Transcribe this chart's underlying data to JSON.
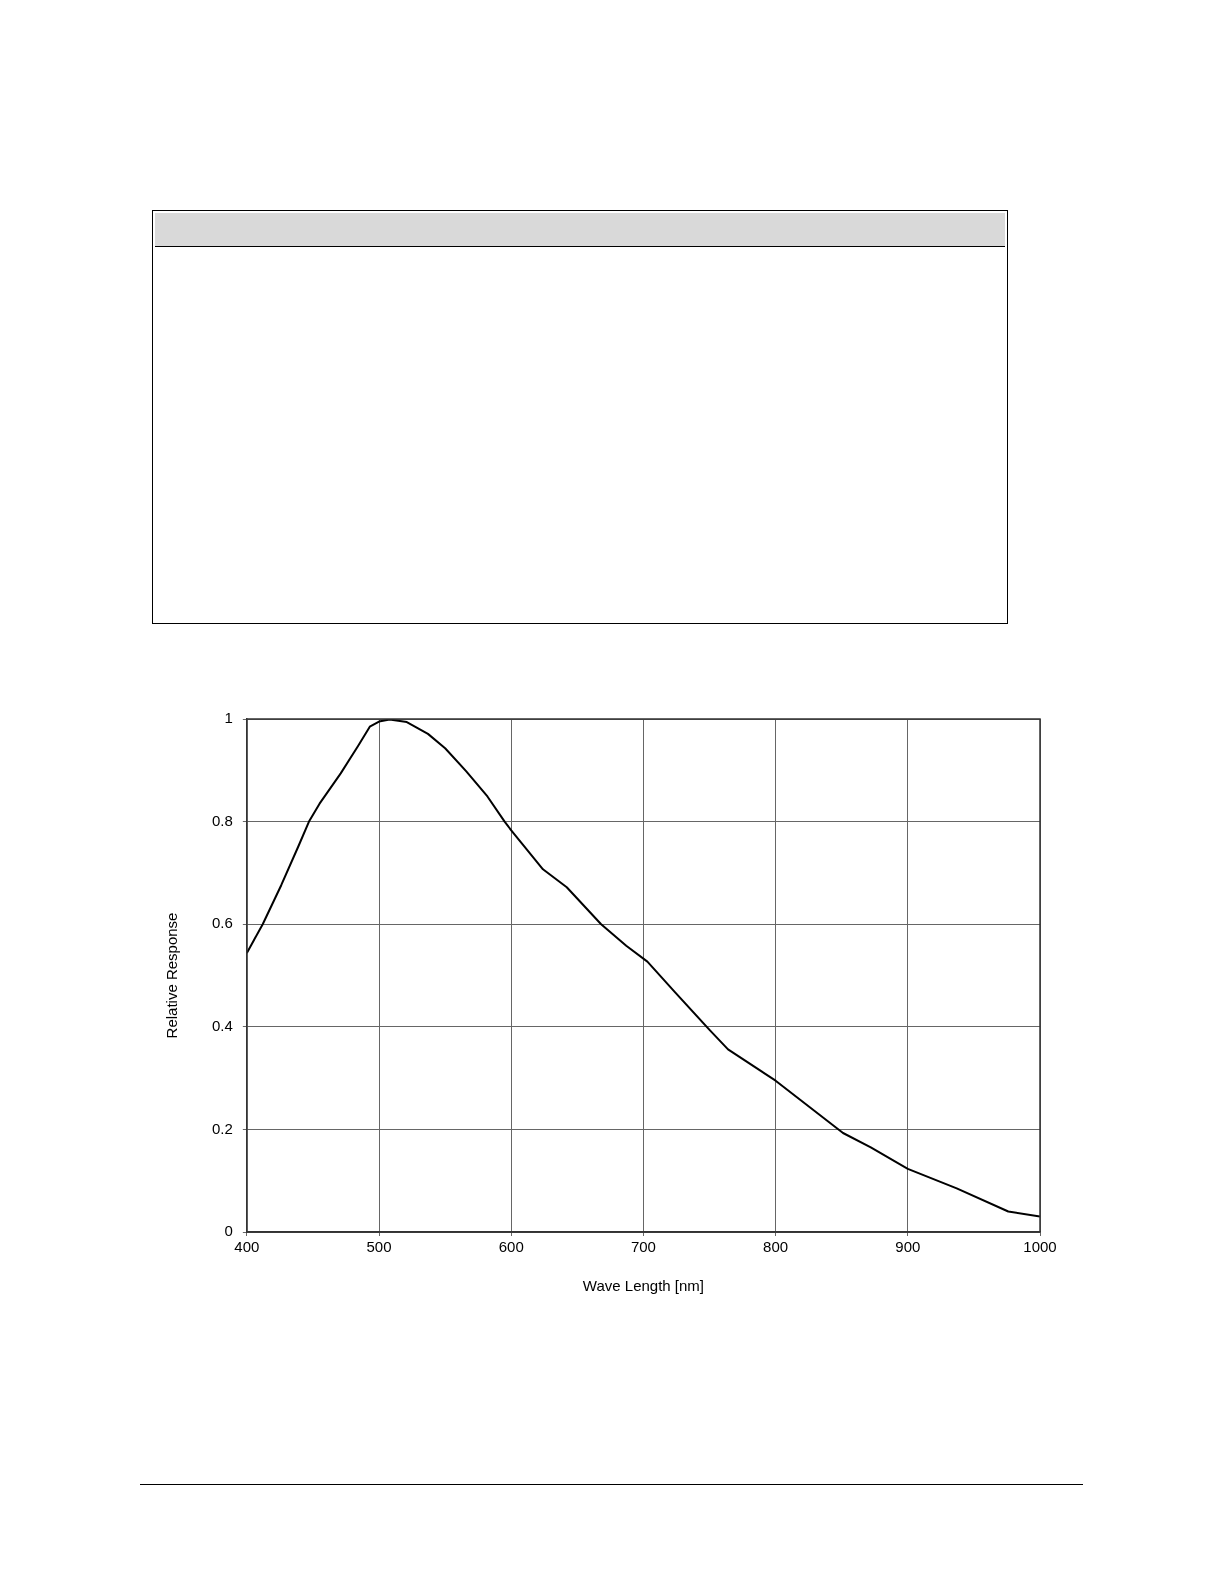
{
  "chart_data": {
    "type": "line",
    "xlabel": "Wave Length [nm]",
    "ylabel": "Relative Response",
    "x": [
      400,
      412,
      426,
      439,
      447,
      455,
      471,
      484,
      493,
      500,
      508,
      521,
      537,
      550,
      566,
      582,
      595,
      600,
      612,
      624,
      642,
      668,
      687,
      703,
      724,
      750,
      764,
      800,
      851,
      872,
      900,
      937,
      976,
      1000
    ],
    "values": [
      0.544,
      0.6,
      0.676,
      0.752,
      0.8,
      0.835,
      0.894,
      0.947,
      0.985,
      0.995,
      0.999,
      0.994,
      0.971,
      0.943,
      0.898,
      0.849,
      0.8,
      0.783,
      0.745,
      0.707,
      0.672,
      0.6,
      0.558,
      0.527,
      0.467,
      0.394,
      0.356,
      0.295,
      0.193,
      0.165,
      0.123,
      0.085,
      0.04,
      0.03
    ],
    "color": "#000000",
    "xlim": [
      400,
      1000
    ],
    "xticks": [
      400,
      500,
      600,
      700,
      800,
      900,
      1000
    ],
    "ylim": [
      0,
      1
    ],
    "yticks": [
      0,
      0.2,
      0.4,
      0.6,
      0.8,
      1
    ],
    "grid": true,
    "legend": false,
    "marker": "none",
    "line_style": "solid"
  }
}
